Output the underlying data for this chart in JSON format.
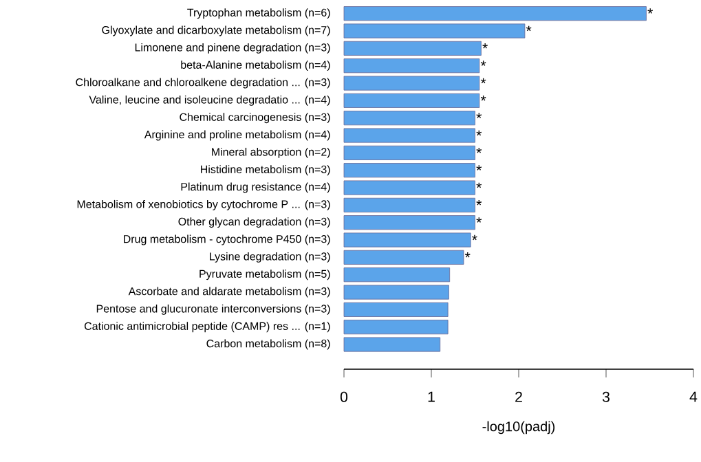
{
  "chart_data": {
    "type": "bar",
    "orientation": "horizontal",
    "xlabel": "-log10(padj)",
    "categories": [
      "Tryptophan metabolism (n=6)",
      "Glyoxylate and dicarboxylate metabolism (n=7)",
      "Limonene and pinene degradation (n=3)",
      "beta-Alanine metabolism (n=4)",
      "Chloroalkane and chloroalkene degradation ... (n=3)",
      "Valine, leucine and isoleucine degradatio ... (n=4)",
      "Chemical carcinogenesis (n=3)",
      "Arginine and proline metabolism (n=4)",
      "Mineral absorption (n=2)",
      "Histidine metabolism (n=3)",
      "Platinum drug resistance (n=4)",
      "Metabolism of xenobiotics by cytochrome P ... (n=3)",
      "Other glycan degradation (n=3)",
      "Drug metabolism - cytochrome P450 (n=3)",
      "Lysine degradation (n=3)",
      "Pyruvate metabolism (n=5)",
      "Ascorbate and aldarate metabolism (n=3)",
      "Pentose and glucuronate interconversions (n=3)",
      "Cationic antimicrobial peptide (CAMP) res ... (n=1)",
      "Carbon metabolism (n=8)"
    ],
    "values": [
      3.46,
      2.07,
      1.57,
      1.55,
      1.55,
      1.55,
      1.5,
      1.5,
      1.5,
      1.5,
      1.5,
      1.5,
      1.5,
      1.45,
      1.37,
      1.21,
      1.2,
      1.19,
      1.19,
      1.1
    ],
    "value_labels": [
      "*",
      "*",
      "*",
      "*",
      "*",
      "*",
      "*",
      "*",
      "*",
      "*",
      "*",
      "*",
      "*",
      "*",
      "*",
      null,
      null,
      null,
      null,
      null
    ],
    "color": "#5ba4ea",
    "xlim": [
      0,
      4
    ],
    "xticks": [
      0,
      1,
      2,
      3,
      4
    ]
  }
}
